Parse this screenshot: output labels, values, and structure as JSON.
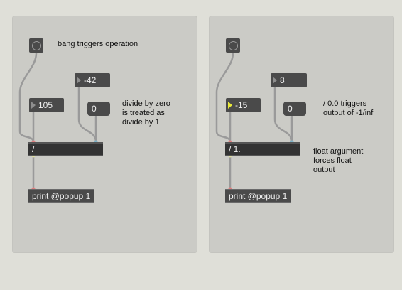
{
  "left_patch": {
    "bang_comment": "bang triggers operation",
    "right_number": "-42",
    "left_number": "105",
    "message_value": "0",
    "divide_object": "/",
    "print_object": "print @popup 1",
    "comment": [
      "divide by zero",
      "is treated as",
      "divide by 1"
    ]
  },
  "right_patch": {
    "right_number": "8",
    "left_number": "-15",
    "message_value": "0",
    "divide_object": "/ 1.",
    "print_object": "print @popup 1",
    "comment_top": [
      "/ 0.0 triggers",
      "output of -1/inf"
    ],
    "comment_bottom": [
      "float argument",
      "forces float",
      "output"
    ]
  },
  "colors": {
    "background": "#dfdfd8",
    "panel": "#cbcbc6",
    "box": "#4a4a4a",
    "inlet_left": "#e08080",
    "inlet_right": "#7fb3c8",
    "active_triangle": "#e8e83a"
  }
}
